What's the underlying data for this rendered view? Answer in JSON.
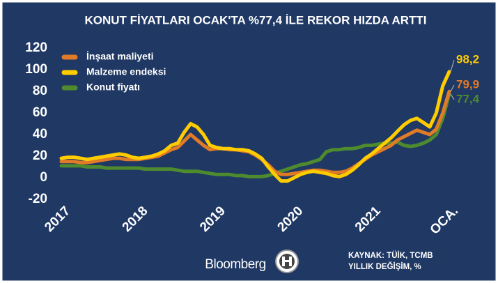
{
  "chart_data": {
    "type": "line",
    "title": "KONUT FİYATLARI OCAK'TA %77,4 İLE REKOR HIZDA ARTTI",
    "categories": [
      "2017",
      null,
      null,
      null,
      null,
      null,
      null,
      null,
      null,
      null,
      null,
      null,
      "2018",
      null,
      null,
      null,
      null,
      null,
      null,
      null,
      null,
      null,
      null,
      null,
      "2019",
      null,
      null,
      null,
      null,
      null,
      null,
      null,
      null,
      null,
      null,
      null,
      "2020",
      null,
      null,
      null,
      null,
      null,
      null,
      null,
      null,
      null,
      null,
      null,
      "2021",
      null,
      null,
      null,
      null,
      null,
      null,
      null,
      null,
      null,
      null,
      null,
      "OCA."
    ],
    "series": [
      {
        "name": "İnşaat maliyeti",
        "color": "#e07b28",
        "values": [
          15,
          15,
          15,
          14,
          14,
          15,
          16,
          17,
          18,
          18,
          17,
          17,
          17,
          18,
          19,
          20,
          23,
          26,
          28,
          34,
          40,
          35,
          30,
          26,
          27,
          27,
          26,
          26,
          25,
          24,
          21,
          17,
          12,
          6,
          3,
          3,
          4,
          5,
          6,
          7,
          7,
          6,
          5,
          5,
          6,
          9,
          13,
          17,
          21,
          24,
          27,
          30,
          35,
          38,
          41,
          44,
          42,
          40,
          45,
          60,
          79.9
        ],
        "value_labels": [
          null,
          null,
          null,
          null,
          null,
          null,
          null,
          null,
          null,
          null,
          null,
          null,
          null,
          null,
          null,
          null,
          null,
          null,
          null,
          null,
          null,
          null,
          null,
          null,
          null,
          null,
          null,
          null,
          null,
          null,
          null,
          null,
          null,
          null,
          null,
          null,
          null,
          null,
          null,
          null,
          null,
          null,
          null,
          null,
          null,
          null,
          null,
          null,
          null,
          null,
          null,
          null,
          null,
          null,
          null,
          null,
          null,
          null,
          null,
          null,
          "79,9"
        ]
      },
      {
        "name": "Malzeme endeksi",
        "color": "#ffcc00",
        "values": [
          18,
          19,
          19,
          18,
          17,
          18,
          19,
          20,
          21,
          22,
          21,
          19,
          18,
          19,
          20,
          22,
          25,
          30,
          32,
          42,
          50,
          47,
          40,
          30,
          28,
          27,
          27,
          26,
          26,
          25,
          22,
          18,
          10,
          3,
          -3,
          -3,
          0,
          3,
          5,
          6,
          5,
          4,
          2,
          1,
          3,
          7,
          12,
          18,
          22,
          27,
          32,
          37,
          43,
          49,
          53,
          55,
          51,
          47,
          60,
          85,
          98.2
        ],
        "value_labels": [
          null,
          null,
          null,
          null,
          null,
          null,
          null,
          null,
          null,
          null,
          null,
          null,
          null,
          null,
          null,
          null,
          null,
          null,
          null,
          null,
          null,
          null,
          null,
          null,
          null,
          null,
          null,
          null,
          null,
          null,
          null,
          null,
          null,
          null,
          null,
          null,
          null,
          null,
          null,
          null,
          null,
          null,
          null,
          null,
          null,
          null,
          null,
          null,
          null,
          null,
          null,
          null,
          null,
          null,
          null,
          null,
          null,
          null,
          null,
          null,
          "98,2"
        ]
      },
      {
        "name": "Konut fiyatı",
        "color": "#4e8a2e",
        "values": [
          11,
          11,
          11,
          11,
          10,
          10,
          10,
          9,
          9,
          9,
          9,
          9,
          9,
          8,
          8,
          8,
          8,
          8,
          7,
          6,
          6,
          6,
          5,
          4,
          3,
          3,
          3,
          2,
          2,
          1,
          1,
          1,
          2,
          4,
          6,
          8,
          10,
          12,
          13,
          15,
          17,
          24,
          26,
          26,
          27,
          27,
          28,
          30,
          30,
          31,
          32,
          32,
          33,
          30,
          29,
          30,
          32,
          35,
          40,
          55,
          77.4
        ],
        "value_labels": [
          null,
          null,
          null,
          null,
          null,
          null,
          null,
          null,
          null,
          null,
          null,
          null,
          null,
          null,
          null,
          null,
          null,
          null,
          null,
          null,
          null,
          null,
          null,
          null,
          null,
          null,
          null,
          null,
          null,
          null,
          null,
          null,
          null,
          null,
          null,
          null,
          null,
          null,
          null,
          null,
          null,
          null,
          null,
          null,
          null,
          null,
          null,
          null,
          null,
          null,
          null,
          null,
          null,
          null,
          null,
          null,
          null,
          null,
          null,
          null,
          "77,4"
        ]
      }
    ],
    "ylim": [
      -20,
      120
    ],
    "yticks": [
      -20,
      0,
      20,
      40,
      60,
      80,
      100,
      120
    ],
    "grid": false,
    "legend": "upper left",
    "source": "KAYNAK: TÜİK, TCMB",
    "unit_note": "YILLIK DEĞİŞİM, %",
    "brand": "Bloomberg"
  }
}
